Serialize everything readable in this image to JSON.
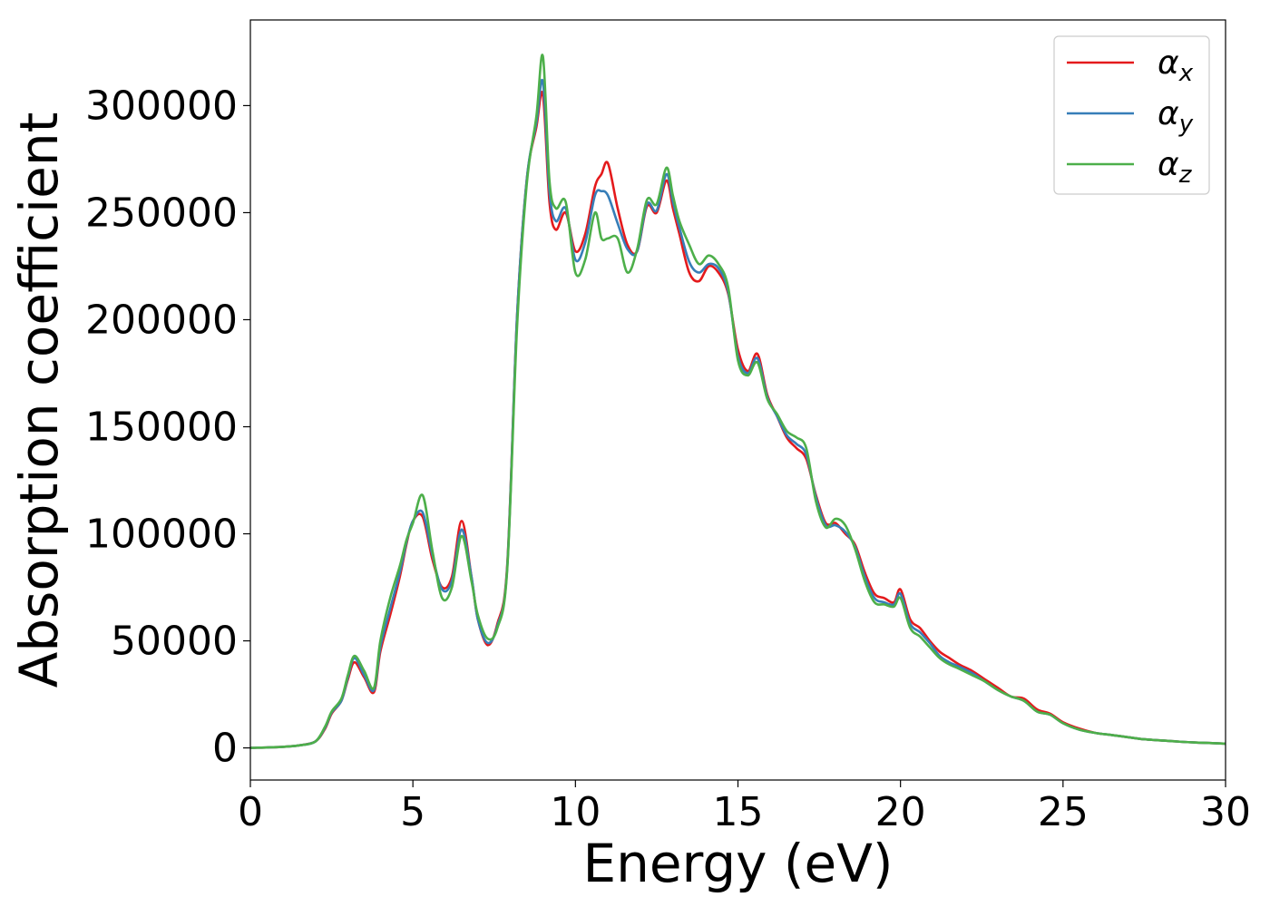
{
  "chart_data": {
    "type": "line",
    "xlabel": "Energy (eV)",
    "ylabel": "Absorption coefficient",
    "xlim": [
      0,
      30
    ],
    "ylim": [
      -15000,
      340000
    ],
    "xticks": [
      0,
      5,
      10,
      15,
      20,
      25,
      30
    ],
    "yticks": [
      0,
      50000,
      100000,
      150000,
      200000,
      250000,
      300000
    ],
    "grid": false,
    "legend_position": "top-right",
    "series": [
      {
        "name": "α",
        "name_subscript": "x",
        "color": "#e41a1c",
        "x": [
          0,
          1,
          1.5,
          2,
          2.3,
          2.5,
          2.8,
          3.0,
          3.2,
          3.5,
          3.8,
          4.0,
          4.3,
          4.6,
          4.8,
          5.0,
          5.3,
          5.6,
          5.9,
          6.2,
          6.5,
          6.8,
          7.0,
          7.3,
          7.6,
          7.9,
          8.2,
          8.5,
          8.8,
          9.0,
          9.2,
          9.4,
          9.7,
          10.0,
          10.3,
          10.6,
          10.8,
          11.0,
          11.3,
          11.6,
          11.9,
          12.2,
          12.5,
          12.8,
          13.0,
          13.2,
          13.5,
          13.8,
          14.1,
          14.4,
          14.7,
          15.0,
          15.3,
          15.6,
          15.9,
          16.2,
          16.5,
          16.8,
          17.1,
          17.4,
          17.7,
          18.0,
          18.3,
          18.6,
          18.9,
          19.2,
          19.5,
          19.8,
          20.0,
          20.3,
          20.6,
          20.9,
          21.2,
          21.5,
          21.8,
          22.2,
          22.6,
          23.0,
          23.4,
          23.8,
          24.2,
          24.6,
          25.0,
          25.5,
          26.0,
          26.5,
          27.0,
          27.5,
          28.0,
          28.5,
          29.0,
          29.5,
          30.0
        ],
        "values": [
          0,
          500,
          1200,
          3000,
          9000,
          16000,
          22000,
          32000,
          40000,
          33000,
          26000,
          45000,
          62000,
          80000,
          95000,
          106000,
          108000,
          88000,
          75000,
          80000,
          106000,
          80000,
          60000,
          48000,
          58000,
          85000,
          200000,
          265000,
          290000,
          305000,
          255000,
          242000,
          250000,
          232000,
          240000,
          262000,
          268000,
          273000,
          252000,
          235000,
          232000,
          253000,
          250000,
          265000,
          252000,
          240000,
          222000,
          218000,
          225000,
          222000,
          212000,
          186000,
          176000,
          184000,
          165000,
          155000,
          145000,
          140000,
          135000,
          118000,
          105000,
          105000,
          100000,
          95000,
          82000,
          72000,
          70000,
          68000,
          74000,
          60000,
          56000,
          50000,
          45000,
          42000,
          39000,
          36000,
          32000,
          28000,
          24000,
          23000,
          18000,
          16000,
          12000,
          9000,
          7000,
          6000,
          5000,
          4000,
          3500,
          3000,
          2600,
          2300,
          2000
        ]
      },
      {
        "name": "α",
        "name_subscript": "y",
        "color": "#377eb8",
        "x": [
          0,
          1,
          1.5,
          2,
          2.3,
          2.5,
          2.8,
          3.0,
          3.2,
          3.5,
          3.8,
          4.0,
          4.3,
          4.6,
          4.8,
          5.0,
          5.3,
          5.6,
          5.9,
          6.2,
          6.5,
          6.8,
          7.0,
          7.3,
          7.6,
          7.9,
          8.2,
          8.5,
          8.8,
          9.0,
          9.2,
          9.4,
          9.7,
          10.0,
          10.3,
          10.6,
          10.8,
          11.0,
          11.3,
          11.6,
          11.9,
          12.2,
          12.5,
          12.8,
          13.0,
          13.2,
          13.5,
          13.8,
          14.1,
          14.4,
          14.7,
          15.0,
          15.3,
          15.6,
          15.9,
          16.2,
          16.5,
          16.8,
          17.1,
          17.4,
          17.7,
          18.0,
          18.3,
          18.6,
          18.9,
          19.2,
          19.5,
          19.8,
          20.0,
          20.3,
          20.6,
          20.9,
          21.2,
          21.5,
          21.8,
          22.2,
          22.6,
          23.0,
          23.4,
          23.8,
          24.2,
          24.6,
          25.0,
          25.5,
          26.0,
          26.5,
          27.0,
          27.5,
          28.0,
          28.5,
          29.0,
          29.5,
          30.0
        ],
        "values": [
          0,
          500,
          1200,
          3000,
          9500,
          16500,
          22000,
          33000,
          42000,
          34000,
          27000,
          47000,
          65000,
          82000,
          96000,
          106000,
          110000,
          90000,
          74000,
          78000,
          102000,
          80000,
          60000,
          49000,
          57000,
          84000,
          200000,
          265000,
          292000,
          311000,
          260000,
          246000,
          252000,
          228000,
          236000,
          258000,
          260000,
          258000,
          245000,
          233000,
          232000,
          254000,
          251000,
          268000,
          255000,
          243000,
          227000,
          222000,
          226000,
          224000,
          213000,
          183000,
          175000,
          182000,
          164000,
          155000,
          146000,
          142000,
          137000,
          117000,
          104000,
          104000,
          101000,
          94000,
          80000,
          70000,
          68000,
          67000,
          72000,
          58000,
          54000,
          49000,
          43000,
          40000,
          38000,
          35000,
          31000,
          27000,
          24000,
          22000,
          17000,
          15500,
          11500,
          8500,
          7000,
          6000,
          5000,
          4000,
          3500,
          3000,
          2600,
          2300,
          2000
        ]
      },
      {
        "name": "α",
        "name_subscript": "z",
        "color": "#4daf4a",
        "x": [
          0,
          1,
          1.5,
          2,
          2.3,
          2.5,
          2.8,
          3.0,
          3.2,
          3.5,
          3.8,
          4.0,
          4.3,
          4.6,
          4.8,
          5.0,
          5.3,
          5.6,
          5.9,
          6.2,
          6.5,
          6.8,
          7.0,
          7.3,
          7.6,
          7.9,
          8.2,
          8.5,
          8.8,
          9.0,
          9.2,
          9.4,
          9.7,
          10.0,
          10.3,
          10.6,
          10.8,
          11.0,
          11.3,
          11.6,
          11.9,
          12.2,
          12.5,
          12.8,
          13.0,
          13.2,
          13.5,
          13.8,
          14.1,
          14.4,
          14.7,
          15.0,
          15.3,
          15.6,
          15.9,
          16.2,
          16.5,
          16.8,
          17.1,
          17.4,
          17.7,
          18.0,
          18.3,
          18.6,
          18.9,
          19.2,
          19.5,
          19.8,
          20.0,
          20.3,
          20.6,
          20.9,
          21.2,
          21.5,
          21.8,
          22.2,
          22.6,
          23.0,
          23.4,
          23.8,
          24.2,
          24.6,
          25.0,
          25.5,
          26.0,
          26.5,
          27.0,
          27.5,
          28.0,
          28.5,
          29.0,
          29.5,
          30.0
        ],
        "values": [
          0,
          500,
          1200,
          3000,
          10000,
          17000,
          23000,
          34000,
          43000,
          36000,
          28000,
          50000,
          70000,
          85000,
          97000,
          105000,
          118000,
          92000,
          70000,
          75000,
          99000,
          78000,
          62000,
          51000,
          56000,
          83000,
          195000,
          263000,
          295000,
          323000,
          265000,
          252000,
          255000,
          222000,
          228000,
          250000,
          238000,
          238000,
          238000,
          222000,
          233000,
          256000,
          254000,
          271000,
          258000,
          246000,
          235000,
          226000,
          230000,
          226000,
          215000,
          181000,
          174000,
          180000,
          163000,
          156000,
          148000,
          145000,
          140000,
          115000,
          103000,
          107000,
          104000,
          93000,
          78000,
          68000,
          67000,
          66000,
          70000,
          56000,
          52000,
          47000,
          42000,
          39000,
          37000,
          34000,
          31000,
          27000,
          24000,
          22000,
          17000,
          15500,
          11500,
          8500,
          7000,
          6000,
          5000,
          4000,
          3500,
          3000,
          2600,
          2300,
          2000
        ]
      }
    ]
  }
}
